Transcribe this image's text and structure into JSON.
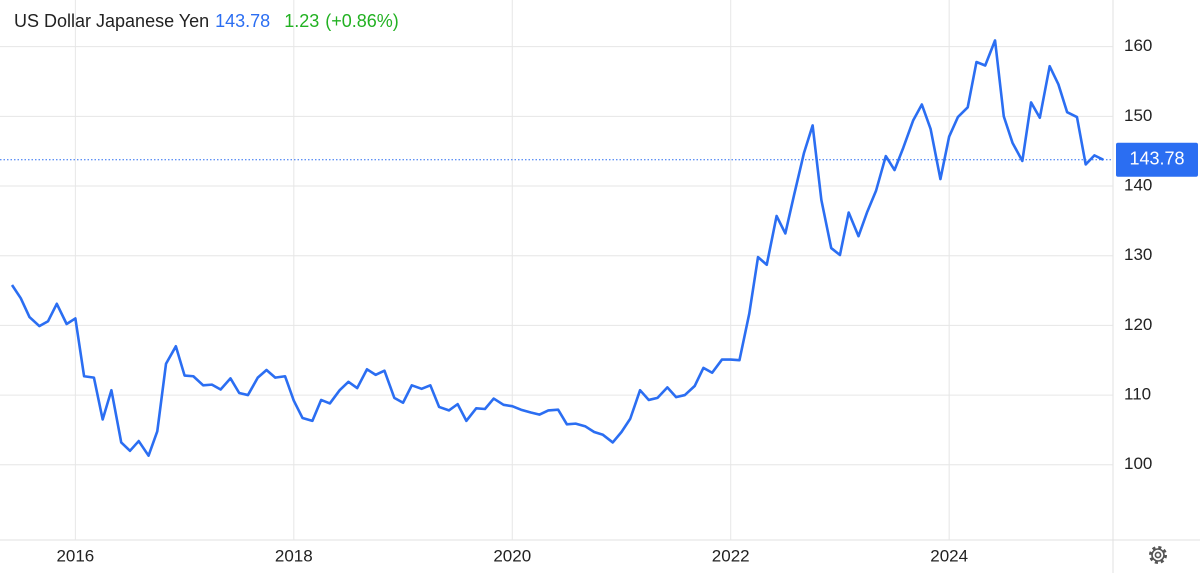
{
  "chart_data": {
    "type": "line",
    "title": "US Dollar Japanese Yen",
    "price": 143.78,
    "change": 1.23,
    "change_percent": {
      "value": 0.86,
      "label": "(+0.86%)"
    },
    "price_color": "#2b6ef2",
    "change_color": "#22b122",
    "grid": true,
    "xlim": [
      2015.31,
      2025.5
    ],
    "xticks": [
      2016,
      2018,
      2020,
      2022,
      2024
    ],
    "ylim": [
      89.2,
      166.7
    ],
    "yticks": [
      100,
      110,
      120,
      130,
      140,
      150,
      160
    ],
    "x": [
      2015.42,
      2015.5,
      2015.58,
      2015.67,
      2015.75,
      2015.83,
      2015.92,
      2016,
      2016.08,
      2016.17,
      2016.25,
      2016.33,
      2016.42,
      2016.5,
      2016.58,
      2016.67,
      2016.75,
      2016.83,
      2016.92,
      2017,
      2017.08,
      2017.17,
      2017.25,
      2017.33,
      2017.42,
      2017.5,
      2017.58,
      2017.67,
      2017.75,
      2017.83,
      2017.92,
      2018,
      2018.08,
      2018.17,
      2018.25,
      2018.33,
      2018.42,
      2018.5,
      2018.58,
      2018.67,
      2018.75,
      2018.83,
      2018.92,
      2019,
      2019.08,
      2019.17,
      2019.25,
      2019.33,
      2019.42,
      2019.5,
      2019.58,
      2019.67,
      2019.75,
      2019.83,
      2019.92,
      2020,
      2020.08,
      2020.17,
      2020.25,
      2020.33,
      2020.42,
      2020.5,
      2020.58,
      2020.67,
      2020.75,
      2020.83,
      2020.92,
      2021,
      2021.08,
      2021.17,
      2021.25,
      2021.33,
      2021.42,
      2021.5,
      2021.58,
      2021.67,
      2021.75,
      2021.83,
      2021.92,
      2022,
      2022.08,
      2022.17,
      2022.25,
      2022.33,
      2022.42,
      2022.5,
      2022.58,
      2022.67,
      2022.75,
      2022.83,
      2022.92,
      2023,
      2023.08,
      2023.17,
      2023.25,
      2023.33,
      2023.42,
      2023.5,
      2023.58,
      2023.67,
      2023.75,
      2023.83,
      2023.92,
      2024,
      2024.08,
      2024.17,
      2024.25,
      2024.33,
      2024.42,
      2024.5,
      2024.58,
      2024.67,
      2024.75,
      2024.83,
      2024.92,
      2025,
      2025.08,
      2025.17,
      2025.25,
      2025.33,
      2025.41
    ],
    "series": [
      {
        "name": "USDJPY",
        "color": "#2b6ef2",
        "values": [
          125.8,
          123.9,
          121.2,
          119.9,
          120.6,
          123.1,
          120.2,
          121,
          112.7,
          112.5,
          106.5,
          110.7,
          103.2,
          102,
          103.4,
          101.3,
          104.8,
          114.5,
          117,
          112.8,
          112.7,
          111.4,
          111.5,
          110.8,
          112.4,
          110.3,
          110,
          112.5,
          113.6,
          112.5,
          112.7,
          109.2,
          106.7,
          106.3,
          109.3,
          108.8,
          110.7,
          111.9,
          111,
          113.7,
          112.9,
          113.5,
          109.6,
          108.9,
          111.4,
          110.9,
          111.4,
          108.3,
          107.8,
          108.7,
          106.3,
          108.1,
          108,
          109.5,
          108.6,
          108.4,
          107.9,
          107.5,
          107.2,
          107.8,
          107.9,
          105.8,
          105.9,
          105.5,
          104.7,
          104.3,
          103.2,
          104.7,
          106.6,
          110.7,
          109.3,
          109.6,
          111.1,
          109.7,
          110,
          111.3,
          113.9,
          113.2,
          115.1,
          115.1,
          115,
          121.7,
          129.8,
          128.7,
          135.7,
          133.2,
          138.7,
          144.7,
          148.7,
          138,
          131.1,
          130.1,
          136.2,
          132.8,
          136.3,
          139.3,
          144.3,
          142.3,
          145.5,
          149.4,
          151.7,
          148.2,
          141,
          147.1,
          149.9,
          151.3,
          157.8,
          157.3,
          160.9,
          150,
          146.2,
          143.6,
          152,
          149.8,
          157.2,
          154.6,
          150.6,
          149.9,
          143.1,
          144.4,
          143.78
        ]
      }
    ]
  }
}
